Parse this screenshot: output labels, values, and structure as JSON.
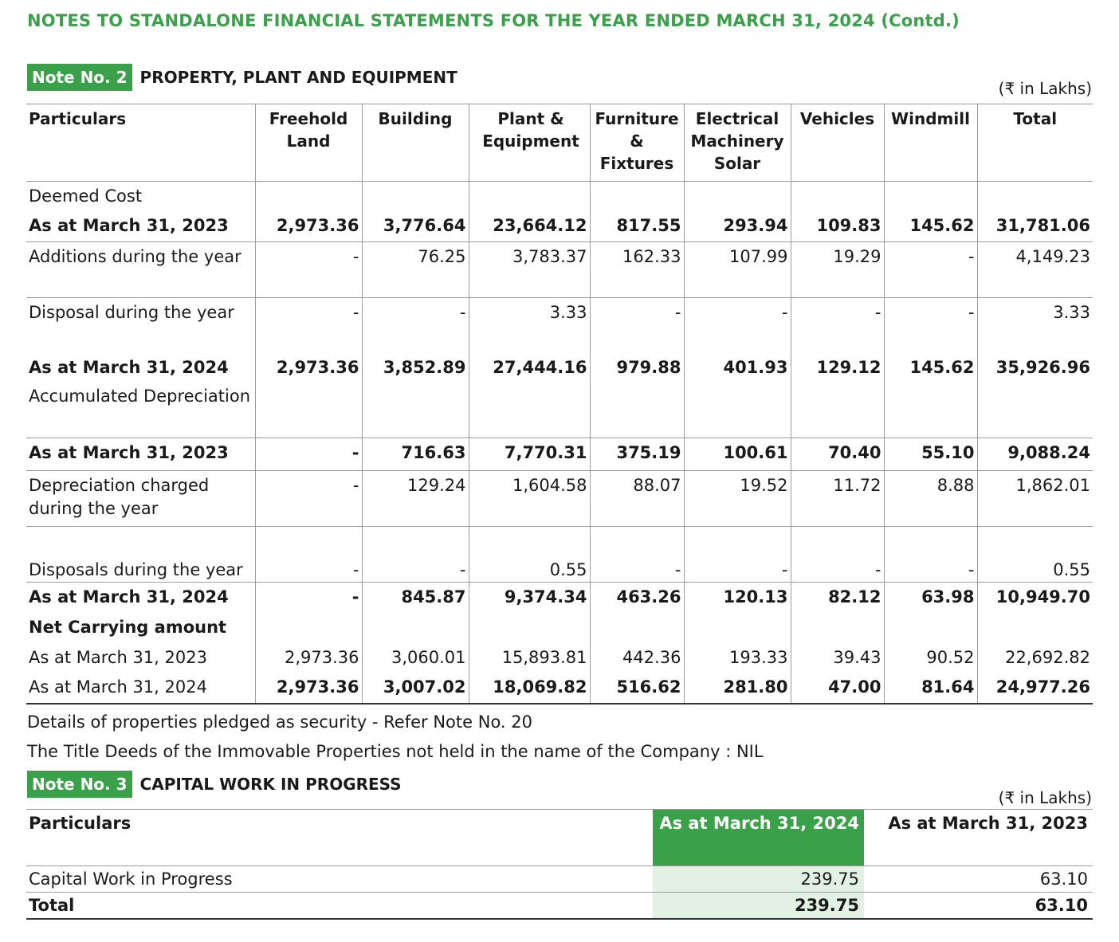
{
  "title": "NOTES TO STANDALONE FINANCIAL STATEMENTS FOR THE YEAR ENDED MARCH 31, 2024 (Contd.)",
  "note2": {
    "badge": "Note No. 2",
    "title": "PROPERTY, PLANT AND EQUIPMENT",
    "unit": "(₹ in Lakhs)",
    "headers": [
      "Particulars",
      "Freehold Land",
      "Building",
      "Plant & Equipment",
      "Furniture & Fixtures",
      "Electrical Machinery Solar",
      "Vehicles",
      "Windmill",
      "Total"
    ],
    "rows": [
      {
        "cells": [
          "Deemed Cost",
          "",
          "",
          "",
          "",
          "",
          "",
          "",
          ""
        ]
      },
      {
        "cells": [
          "As at March 31, 2023",
          "2,973.36",
          "3,776.64",
          "23,664.12",
          "817.55",
          "293.94",
          "109.83",
          "145.62",
          "31,781.06"
        ]
      },
      {
        "cells": [
          "Additions during the year",
          "-",
          "76.25",
          "3,783.37",
          "162.33",
          "107.99",
          "19.29",
          "-",
          "4,149.23"
        ]
      },
      {
        "cells": [
          "Disposal during the year",
          "-",
          "-",
          "3.33",
          "-",
          "-",
          "-",
          "-",
          "3.33"
        ]
      },
      {
        "cells": [
          "As at March 31, 2024",
          "2,973.36",
          "3,852.89",
          "27,444.16",
          "979.88",
          "401.93",
          "129.12",
          "145.62",
          "35,926.96"
        ]
      },
      {
        "cells": [
          "Accumulated Depreciation",
          "",
          "",
          "",
          "",
          "",
          "",
          "",
          ""
        ]
      },
      {
        "cells": [
          "As at March 31, 2023",
          "-",
          "716.63",
          "7,770.31",
          "375.19",
          "100.61",
          "70.40",
          "55.10",
          "9,088.24"
        ]
      },
      {
        "cells": [
          "Depreciation charged during the year",
          "-",
          "129.24",
          "1,604.58",
          "88.07",
          "19.52",
          "11.72",
          "8.88",
          "1,862.01"
        ]
      },
      {
        "cells": [
          "Disposals during the year",
          "-",
          "-",
          "0.55",
          "-",
          "-",
          "-",
          "-",
          "0.55"
        ]
      },
      {
        "cells": [
          "As at March 31, 2024",
          "-",
          "845.87",
          "9,374.34",
          "463.26",
          "120.13",
          "82.12",
          "63.98",
          "10,949.70"
        ]
      },
      {
        "cells": [
          "Net Carrying amount",
          "",
          "",
          "",
          "",
          "",
          "",
          "",
          ""
        ]
      },
      {
        "cells": [
          "As at March 31, 2023",
          "2,973.36",
          "3,060.01",
          "15,893.81",
          "442.36",
          "193.33",
          "39.43",
          "90.52",
          "22,692.82"
        ]
      },
      {
        "cells": [
          "As at March 31, 2024",
          "2,973.36",
          "3,007.02",
          "18,069.82",
          "516.62",
          "281.80",
          "47.00",
          "81.64",
          "24,977.26"
        ]
      }
    ],
    "notes": [
      "Details of properties pledged as security - Refer Note No. 20",
      "The Title Deeds of the Immovable Properties not held in the name of the Company : NIL"
    ]
  },
  "note3": {
    "badge": "Note No. 3",
    "title": "CAPITAL WORK IN PROGRESS",
    "unit": "(₹ in Lakhs)",
    "headers": [
      "Particulars",
      "As at March 31, 2024",
      "As at March 31, 2023"
    ],
    "rows": [
      {
        "cells": [
          "Capital Work in Progress",
          "239.75",
          "63.10"
        ]
      },
      {
        "cells": [
          "Total",
          "239.75",
          "63.10"
        ]
      }
    ]
  },
  "colors": {
    "green": "#3aa14a",
    "light_green": "#e3f1e4"
  }
}
